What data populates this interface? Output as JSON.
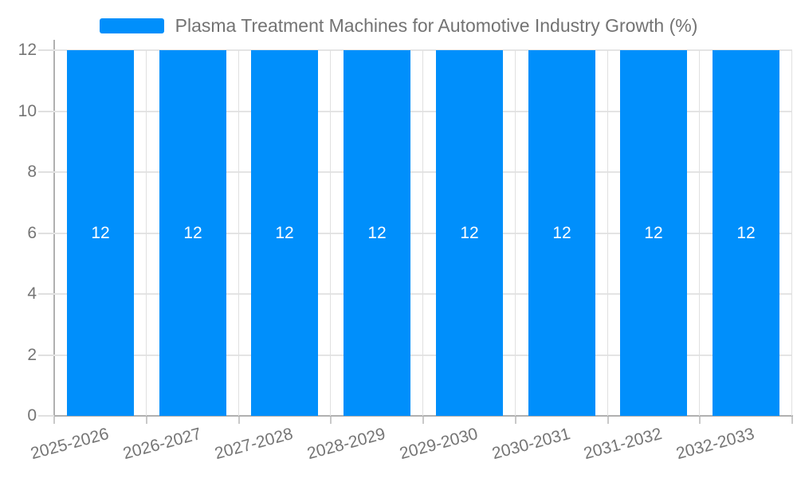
{
  "legend": {
    "series_label": "Plasma Treatment Machines for Automotive Industry Growth (%)",
    "swatch_color": "#008FFB"
  },
  "chart_data": {
    "type": "bar",
    "title": "",
    "categories": [
      "2025-2026",
      "2026-2027",
      "2027-2028",
      "2028-2029",
      "2029-2030",
      "2030-2031",
      "2031-2032",
      "2032-2033"
    ],
    "series": [
      {
        "name": "Plasma Treatment Machines for Automotive Industry Growth (%)",
        "values": [
          12,
          12,
          12,
          12,
          12,
          12,
          12,
          12
        ],
        "color": "#008FFB"
      }
    ],
    "bar_value_labels": [
      "12",
      "12",
      "12",
      "12",
      "12",
      "12",
      "12",
      "12"
    ],
    "xlabel": "",
    "ylabel": "",
    "ylim": [
      0,
      12
    ],
    "yticks": [
      0,
      2,
      4,
      6,
      8,
      10,
      12
    ],
    "grid": "on",
    "legend_position": "top-center"
  },
  "colors": {
    "bar": "#008FFB",
    "bar_label_text": "#FFFFFF",
    "axis_line": "#B0B0B0",
    "gridline": "#E4E4E4",
    "tick_label_text": "#757575",
    "legend_text": "#737373",
    "background": "#FFFFFF"
  }
}
